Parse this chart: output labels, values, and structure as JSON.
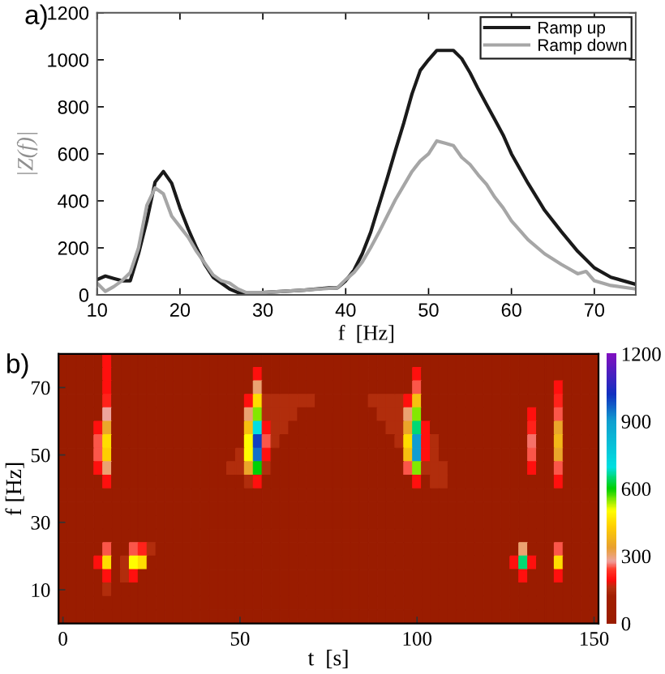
{
  "chart_data": [
    {
      "type": "line",
      "annotations": [
        "a)"
      ],
      "xlabel": "f  [Hz]",
      "ylabel": "|Z(f)|",
      "xlim": [
        10,
        75
      ],
      "ylim": [
        0,
        1200
      ],
      "xticks": [
        10,
        20,
        30,
        40,
        50,
        60,
        70
      ],
      "yticks": [
        0,
        200,
        400,
        600,
        800,
        1000,
        1200
      ],
      "legend": "top right",
      "series": [
        {
          "name": "Ramp up",
          "color": "#1a1a1a",
          "x": [
            10,
            11,
            12,
            13,
            14,
            15,
            16,
            17,
            18,
            19,
            20,
            21,
            22,
            23,
            24,
            25,
            26,
            27,
            28,
            30,
            35,
            38,
            39,
            40,
            41,
            42,
            43,
            44,
            45,
            46,
            47,
            48,
            49,
            50,
            51,
            52,
            53,
            54,
            55,
            56,
            57,
            58,
            59,
            60,
            62,
            64,
            66,
            68,
            70,
            72,
            75
          ],
          "values": [
            65,
            80,
            70,
            60,
            60,
            175,
            315,
            480,
            525,
            475,
            370,
            280,
            200,
            130,
            75,
            50,
            25,
            10,
            5,
            10,
            20,
            30,
            30,
            60,
            105,
            175,
            265,
            380,
            495,
            615,
            730,
            855,
            955,
            1000,
            1040,
            1040,
            1040,
            1005,
            945,
            875,
            810,
            745,
            680,
            600,
            475,
            360,
            270,
            185,
            115,
            75,
            45
          ]
        },
        {
          "name": "Ramp down",
          "color": "#a6a6a6",
          "x": [
            10,
            11,
            12,
            13,
            14,
            15,
            16,
            17,
            18,
            19,
            20,
            21,
            22,
            23,
            24,
            25,
            26,
            27,
            28,
            30,
            35,
            39,
            40,
            41,
            42,
            43,
            44,
            45,
            46,
            47,
            48,
            49,
            50,
            51,
            52,
            53,
            54,
            55,
            56,
            57,
            58,
            59,
            60,
            62,
            64,
            66,
            68,
            69,
            70,
            72,
            75
          ],
          "values": [
            50,
            15,
            35,
            60,
            95,
            200,
            380,
            455,
            430,
            335,
            290,
            245,
            185,
            135,
            85,
            60,
            50,
            25,
            10,
            10,
            20,
            30,
            65,
            95,
            140,
            200,
            265,
            335,
            405,
            465,
            525,
            570,
            600,
            655,
            645,
            635,
            585,
            555,
            510,
            470,
            415,
            370,
            315,
            235,
            175,
            130,
            90,
            100,
            60,
            40,
            25
          ]
        }
      ]
    },
    {
      "type": "heatmap",
      "annotations": [
        "b)"
      ],
      "xlabel": "t  [s]",
      "ylabel": "f [Hz]",
      "clim": [
        0,
        1200
      ],
      "cticks": [
        0,
        300,
        600,
        900,
        1200
      ],
      "categories": [
        "0",
        null,
        null,
        null,
        null,
        null,
        null,
        null,
        null,
        null,
        null,
        null,
        null,
        null,
        null,
        null,
        null,
        null,
        null,
        null,
        "50",
        null,
        null,
        null,
        null,
        null,
        null,
        null,
        null,
        null,
        null,
        null,
        null,
        null,
        null,
        null,
        null,
        null,
        null,
        null,
        "100",
        null,
        null,
        null,
        null,
        null,
        null,
        null,
        null,
        null,
        null,
        null,
        null,
        null,
        null,
        null,
        null,
        null,
        null,
        null,
        "150"
      ],
      "y_categories": [
        null,
        null,
        "70",
        null,
        null,
        null,
        null,
        "50",
        null,
        null,
        null,
        null,
        "30",
        null,
        null,
        null,
        null,
        "10",
        null,
        null
      ],
      "cells": [
        [
          0,
          0,
          0,
          0,
          0,
          200,
          0,
          0,
          0,
          0,
          0,
          0,
          0,
          0,
          0,
          0,
          0,
          0,
          0,
          0,
          0,
          0,
          0,
          0,
          0,
          0,
          0,
          0,
          0,
          0,
          0,
          0,
          0,
          0,
          0,
          0,
          0,
          0,
          0,
          0,
          0,
          0,
          0,
          0,
          0,
          0,
          0,
          0,
          0,
          0,
          0,
          0,
          0,
          0,
          0,
          0,
          0,
          0,
          0,
          0,
          0
        ],
        [
          0,
          0,
          0,
          0,
          0,
          200,
          0,
          0,
          0,
          0,
          0,
          0,
          0,
          0,
          0,
          0,
          0,
          0,
          0,
          0,
          0,
          0,
          200,
          0,
          0,
          0,
          0,
          0,
          0,
          0,
          0,
          0,
          0,
          0,
          0,
          0,
          0,
          0,
          0,
          0,
          200,
          0,
          0,
          0,
          0,
          0,
          0,
          0,
          0,
          0,
          0,
          0,
          0,
          0,
          0,
          0,
          0,
          0,
          0,
          0,
          0
        ],
        [
          0,
          0,
          0,
          0,
          0,
          200,
          0,
          0,
          0,
          0,
          0,
          0,
          0,
          0,
          0,
          0,
          0,
          0,
          0,
          0,
          0,
          0,
          300,
          0,
          0,
          0,
          0,
          0,
          0,
          0,
          0,
          0,
          0,
          0,
          0,
          0,
          0,
          0,
          0,
          0,
          250,
          0,
          0,
          0,
          0,
          0,
          0,
          0,
          0,
          0,
          0,
          0,
          0,
          0,
          0,
          0,
          200,
          0,
          0,
          0,
          0
        ],
        [
          0,
          0,
          0,
          0,
          0,
          220,
          0,
          0,
          0,
          0,
          0,
          0,
          0,
          0,
          0,
          0,
          0,
          0,
          0,
          0,
          0,
          200,
          450,
          150,
          150,
          150,
          150,
          150,
          150,
          0,
          0,
          0,
          0,
          0,
          0,
          150,
          150,
          150,
          150,
          200,
          400,
          0,
          0,
          0,
          0,
          0,
          0,
          0,
          0,
          0,
          0,
          0,
          0,
          0,
          0,
          0,
          220,
          0,
          0,
          0,
          0
        ],
        [
          0,
          0,
          0,
          0,
          0,
          280,
          0,
          0,
          0,
          0,
          0,
          0,
          0,
          0,
          0,
          0,
          0,
          0,
          0,
          0,
          0,
          300,
          550,
          150,
          150,
          150,
          150,
          0,
          0,
          0,
          0,
          0,
          0,
          0,
          0,
          0,
          150,
          150,
          150,
          300,
          550,
          0,
          0,
          0,
          0,
          0,
          0,
          0,
          0,
          0,
          0,
          0,
          0,
          200,
          0,
          0,
          250,
          0,
          0,
          0,
          0
        ],
        [
          0,
          0,
          0,
          0,
          200,
          350,
          0,
          0,
          0,
          0,
          0,
          0,
          0,
          0,
          0,
          0,
          0,
          0,
          0,
          0,
          0,
          400,
          700,
          200,
          150,
          150,
          0,
          0,
          0,
          0,
          0,
          0,
          0,
          0,
          0,
          0,
          0,
          150,
          150,
          350,
          650,
          200,
          0,
          0,
          0,
          0,
          0,
          0,
          0,
          0,
          0,
          0,
          0,
          220,
          0,
          0,
          350,
          0,
          0,
          0,
          0
        ],
        [
          0,
          0,
          0,
          0,
          250,
          450,
          0,
          0,
          0,
          0,
          0,
          0,
          0,
          0,
          0,
          0,
          0,
          0,
          0,
          0,
          0,
          500,
          1000,
          250,
          150,
          0,
          0,
          0,
          0,
          0,
          0,
          0,
          0,
          0,
          0,
          0,
          0,
          0,
          150,
          450,
          900,
          200,
          150,
          0,
          0,
          0,
          0,
          0,
          0,
          0,
          0,
          0,
          0,
          260,
          0,
          0,
          380,
          0,
          0,
          0,
          0
        ],
        [
          0,
          0,
          0,
          0,
          250,
          430,
          0,
          0,
          0,
          0,
          0,
          0,
          0,
          0,
          0,
          0,
          0,
          0,
          0,
          0,
          150,
          500,
          950,
          200,
          0,
          0,
          0,
          0,
          0,
          0,
          0,
          0,
          0,
          0,
          0,
          0,
          0,
          0,
          0,
          400,
          900,
          200,
          150,
          0,
          0,
          0,
          0,
          0,
          0,
          0,
          0,
          0,
          0,
          250,
          0,
          0,
          350,
          0,
          0,
          0,
          0
        ],
        [
          0,
          0,
          0,
          0,
          200,
          300,
          0,
          0,
          0,
          0,
          0,
          0,
          0,
          0,
          0,
          0,
          0,
          0,
          0,
          150,
          150,
          350,
          600,
          150,
          0,
          0,
          0,
          0,
          0,
          0,
          0,
          0,
          0,
          0,
          0,
          0,
          0,
          0,
          0,
          250,
          550,
          150,
          150,
          150,
          0,
          0,
          0,
          0,
          0,
          0,
          0,
          0,
          0,
          200,
          0,
          0,
          250,
          0,
          0,
          0,
          0
        ],
        [
          0,
          0,
          0,
          0,
          0,
          200,
          0,
          0,
          0,
          0,
          0,
          0,
          0,
          0,
          0,
          0,
          0,
          0,
          0,
          0,
          0,
          150,
          200,
          0,
          0,
          0,
          0,
          0,
          0,
          0,
          0,
          0,
          0,
          0,
          0,
          0,
          0,
          0,
          0,
          0,
          200,
          0,
          150,
          150,
          0,
          0,
          0,
          0,
          0,
          0,
          0,
          0,
          0,
          0,
          0,
          0,
          200,
          0,
          0,
          0,
          0
        ],
        [
          0,
          0,
          0,
          0,
          0,
          0,
          0,
          0,
          0,
          0,
          0,
          0,
          0,
          0,
          0,
          0,
          0,
          0,
          0,
          0,
          0,
          0,
          0,
          0,
          0,
          0,
          0,
          0,
          0,
          0,
          0,
          0,
          0,
          0,
          0,
          0,
          0,
          0,
          0,
          0,
          0,
          0,
          0,
          0,
          0,
          0,
          0,
          0,
          0,
          0,
          0,
          0,
          0,
          0,
          0,
          0,
          0,
          0,
          0,
          0,
          0
        ],
        [
          0,
          0,
          0,
          0,
          0,
          0,
          0,
          0,
          0,
          0,
          0,
          0,
          0,
          0,
          0,
          0,
          0,
          0,
          0,
          0,
          0,
          0,
          0,
          0,
          0,
          0,
          0,
          0,
          0,
          0,
          0,
          0,
          0,
          0,
          0,
          0,
          0,
          0,
          0,
          0,
          0,
          0,
          0,
          0,
          0,
          0,
          0,
          0,
          0,
          0,
          0,
          0,
          0,
          0,
          0,
          0,
          0,
          0,
          0,
          0,
          0
        ],
        [
          0,
          0,
          0,
          0,
          0,
          0,
          0,
          0,
          0,
          0,
          0,
          0,
          0,
          0,
          0,
          0,
          0,
          0,
          0,
          0,
          0,
          0,
          0,
          0,
          0,
          0,
          0,
          0,
          0,
          0,
          0,
          0,
          0,
          0,
          0,
          0,
          0,
          0,
          0,
          0,
          0,
          0,
          0,
          0,
          0,
          0,
          0,
          0,
          0,
          0,
          0,
          0,
          0,
          0,
          0,
          0,
          0,
          0,
          0,
          0,
          0
        ],
        [
          0,
          0,
          0,
          0,
          0,
          0,
          0,
          0,
          0,
          0,
          0,
          0,
          0,
          0,
          0,
          0,
          0,
          0,
          0,
          0,
          0,
          0,
          0,
          0,
          0,
          0,
          0,
          0,
          0,
          0,
          0,
          0,
          0,
          0,
          0,
          0,
          0,
          0,
          0,
          0,
          0,
          0,
          0,
          0,
          0,
          0,
          0,
          0,
          0,
          0,
          0,
          0,
          0,
          0,
          0,
          0,
          0,
          0,
          0,
          0,
          0
        ],
        [
          0,
          0,
          0,
          0,
          0,
          250,
          0,
          0,
          250,
          220,
          150,
          0,
          0,
          0,
          0,
          0,
          0,
          0,
          0,
          0,
          0,
          0,
          0,
          0,
          0,
          0,
          0,
          0,
          0,
          0,
          0,
          0,
          0,
          0,
          0,
          0,
          0,
          0,
          0,
          0,
          0,
          0,
          0,
          0,
          0,
          0,
          0,
          0,
          0,
          0,
          0,
          0,
          300,
          0,
          0,
          0,
          250,
          0,
          0,
          0,
          0
        ],
        [
          0,
          0,
          0,
          0,
          200,
          450,
          0,
          150,
          500,
          450,
          0,
          0,
          0,
          0,
          0,
          0,
          0,
          0,
          0,
          0,
          0,
          0,
          0,
          0,
          0,
          0,
          0,
          0,
          0,
          0,
          0,
          0,
          0,
          0,
          0,
          0,
          0,
          0,
          0,
          0,
          0,
          0,
          0,
          0,
          0,
          0,
          0,
          0,
          0,
          0,
          0,
          200,
          650,
          200,
          0,
          0,
          450,
          0,
          0,
          0,
          0
        ],
        [
          0,
          0,
          0,
          0,
          0,
          200,
          0,
          150,
          200,
          0,
          0,
          0,
          0,
          0,
          0,
          0,
          0,
          0,
          0,
          0,
          0,
          0,
          0,
          0,
          0,
          0,
          0,
          0,
          0,
          0,
          0,
          0,
          0,
          0,
          0,
          0,
          0,
          0,
          0,
          0,
          0,
          0,
          0,
          0,
          0,
          0,
          0,
          0,
          0,
          0,
          0,
          0,
          200,
          0,
          0,
          0,
          200,
          0,
          0,
          0,
          0
        ],
        [
          0,
          0,
          0,
          0,
          0,
          150,
          0,
          0,
          0,
          0,
          0,
          0,
          0,
          0,
          0,
          0,
          0,
          0,
          0,
          0,
          0,
          0,
          0,
          0,
          0,
          0,
          0,
          0,
          0,
          0,
          0,
          0,
          0,
          0,
          0,
          0,
          0,
          0,
          0,
          0,
          0,
          0,
          0,
          0,
          0,
          0,
          0,
          0,
          0,
          0,
          0,
          0,
          0,
          0,
          0,
          0,
          0,
          0,
          0,
          0,
          0
        ],
        [
          0,
          0,
          0,
          0,
          0,
          0,
          0,
          0,
          0,
          0,
          0,
          0,
          0,
          0,
          0,
          0,
          0,
          0,
          0,
          0,
          0,
          0,
          0,
          0,
          0,
          0,
          0,
          0,
          0,
          0,
          0,
          0,
          0,
          0,
          0,
          0,
          0,
          0,
          0,
          0,
          0,
          0,
          0,
          0,
          0,
          0,
          0,
          0,
          0,
          0,
          0,
          0,
          0,
          0,
          0,
          0,
          0,
          0,
          0,
          0,
          0
        ],
        [
          0,
          0,
          0,
          0,
          0,
          0,
          0,
          0,
          0,
          0,
          0,
          0,
          0,
          0,
          0,
          0,
          0,
          0,
          0,
          0,
          0,
          0,
          0,
          0,
          0,
          0,
          0,
          0,
          0,
          0,
          0,
          0,
          0,
          0,
          0,
          0,
          0,
          0,
          0,
          0,
          0,
          0,
          0,
          0,
          0,
          0,
          0,
          0,
          0,
          0,
          0,
          0,
          0,
          0,
          0,
          0,
          0,
          0,
          0,
          0,
          0
        ]
      ]
    }
  ]
}
